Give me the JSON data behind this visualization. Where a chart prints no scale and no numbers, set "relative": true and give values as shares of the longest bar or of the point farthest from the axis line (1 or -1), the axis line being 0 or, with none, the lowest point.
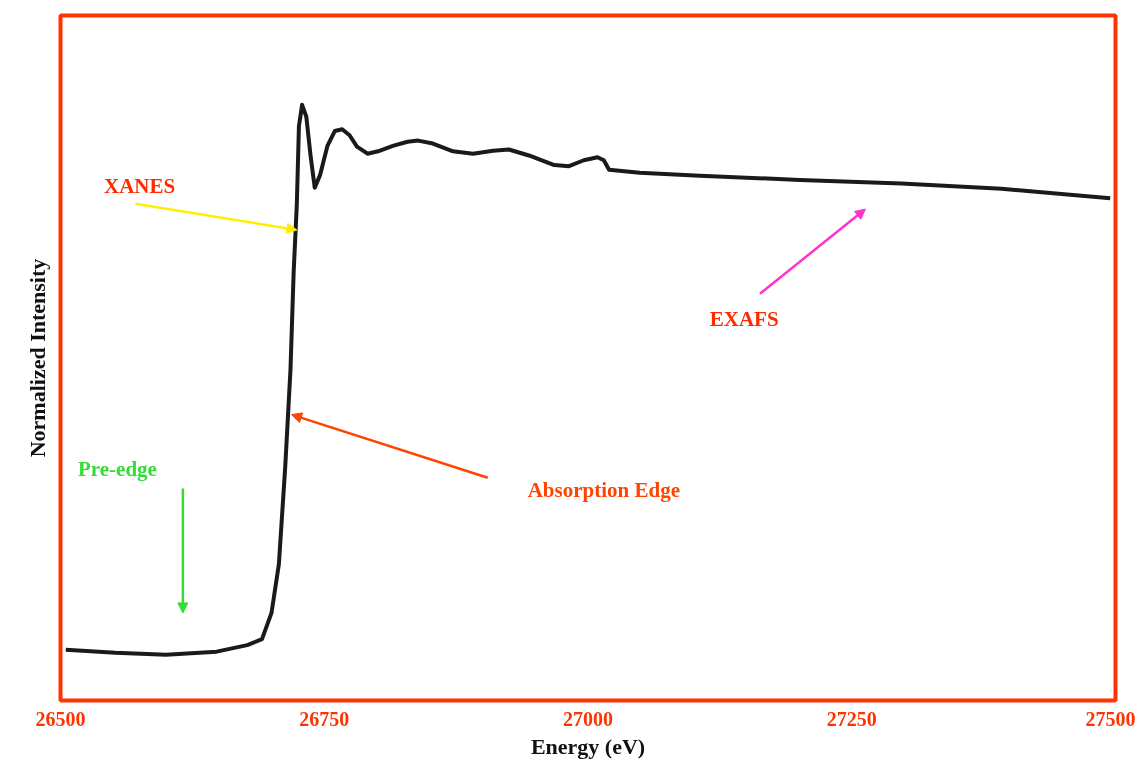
{
  "chart_data": {
    "type": "line",
    "relative": true,
    "xlabel": "Energy (eV)",
    "ylabel": "Normalized Intensity",
    "x": [
      26505,
      26552,
      26600,
      26648,
      26677,
      26691,
      26700,
      26707,
      26713,
      26718,
      26721,
      26724,
      26726,
      26729,
      26733,
      26737,
      26741,
      26746,
      26753,
      26760,
      26767,
      26774,
      26781,
      26791,
      26801,
      26815,
      26829,
      26839,
      26853,
      26872,
      26891,
      26910,
      26925,
      26944,
      26968,
      26982,
      26996,
      27009,
      27015,
      27020,
      27049,
      27106,
      27201,
      27297,
      27392,
      27495
    ],
    "series": [
      {
        "color": "#1a1a1a",
        "values": [
          0.085,
          0.08,
          0.077,
          0.082,
          0.093,
          0.103,
          0.147,
          0.229,
          0.392,
          0.556,
          0.719,
          0.833,
          0.964,
          1.0,
          0.98,
          0.915,
          0.861,
          0.882,
          0.931,
          0.956,
          0.959,
          0.949,
          0.93,
          0.918,
          0.922,
          0.931,
          0.938,
          0.94,
          0.935,
          0.922,
          0.918,
          0.923,
          0.925,
          0.915,
          0.899,
          0.897,
          0.907,
          0.912,
          0.907,
          0.891,
          0.886,
          0.881,
          0.874,
          0.868,
          0.859,
          0.843
        ]
      }
    ],
    "xlim": [
      26500,
      27500
    ],
    "xticks": [
      26500,
      26750,
      27000,
      27250,
      27500
    ],
    "grid": false,
    "marker": "none",
    "line_style": "solid",
    "annotations": [
      "XANES",
      "EXAFS",
      "Absorption Edge",
      "Pre-edge"
    ]
  }
}
